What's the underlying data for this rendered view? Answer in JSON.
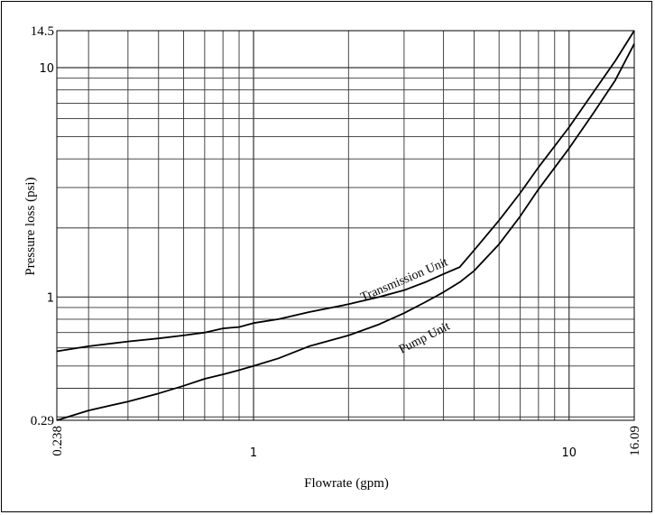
{
  "chart_data": {
    "type": "line",
    "title": "",
    "xlabel": "Flowrate (gpm)",
    "ylabel": "Pressure loss (psi)",
    "x_scale": "log",
    "y_scale": "log",
    "xlim": [
      0.238,
      16.09
    ],
    "ylim": [
      0.29,
      14.5
    ],
    "grid": true,
    "x_ticks": [
      {
        "value": 0.238,
        "label": "0.238",
        "rotated": true
      },
      {
        "value": 1,
        "label": "1",
        "rotated": false
      },
      {
        "value": 10,
        "label": "10",
        "rotated": false
      },
      {
        "value": 16.09,
        "label": "16.09",
        "rotated": true
      }
    ],
    "y_ticks": [
      {
        "value": 14.5,
        "label": "14.5"
      },
      {
        "value": 10,
        "label": "10"
      },
      {
        "value": 1,
        "label": "1"
      },
      {
        "value": 0.29,
        "label": "0.29"
      }
    ],
    "series": [
      {
        "name": "Transmission Unit",
        "color": "#000000",
        "x": [
          0.238,
          0.3,
          0.4,
          0.5,
          0.6,
          0.7,
          0.8,
          0.9,
          1.0,
          1.2,
          1.5,
          2.0,
          2.5,
          3.0,
          3.5,
          4.0,
          4.5,
          5.0,
          6.0,
          7.0,
          8.0,
          10.0,
          12.0,
          14.0,
          16.09
        ],
        "y": [
          0.58,
          0.61,
          0.64,
          0.66,
          0.68,
          0.7,
          0.73,
          0.74,
          0.77,
          0.8,
          0.86,
          0.93,
          1.0,
          1.07,
          1.16,
          1.26,
          1.35,
          1.6,
          2.16,
          2.84,
          3.68,
          5.5,
          7.9,
          10.7,
          14.5
        ]
      },
      {
        "name": "Pump Unit",
        "color": "#000000",
        "x": [
          0.238,
          0.3,
          0.4,
          0.5,
          0.6,
          0.7,
          0.8,
          0.9,
          1.0,
          1.2,
          1.5,
          2.0,
          2.5,
          3.0,
          3.5,
          4.0,
          4.5,
          5.0,
          6.0,
          7.0,
          8.0,
          10.0,
          12.0,
          14.0,
          16.09
        ],
        "y": [
          0.29,
          0.32,
          0.35,
          0.38,
          0.41,
          0.44,
          0.46,
          0.48,
          0.5,
          0.54,
          0.61,
          0.68,
          0.76,
          0.85,
          0.95,
          1.05,
          1.16,
          1.3,
          1.7,
          2.25,
          2.95,
          4.45,
          6.4,
          8.8,
          12.7
        ]
      }
    ],
    "annotations": [
      {
        "text": "Transmission Unit",
        "series": "Transmission Unit"
      },
      {
        "text": "Pump Unit",
        "series": "Pump Unit"
      }
    ]
  }
}
